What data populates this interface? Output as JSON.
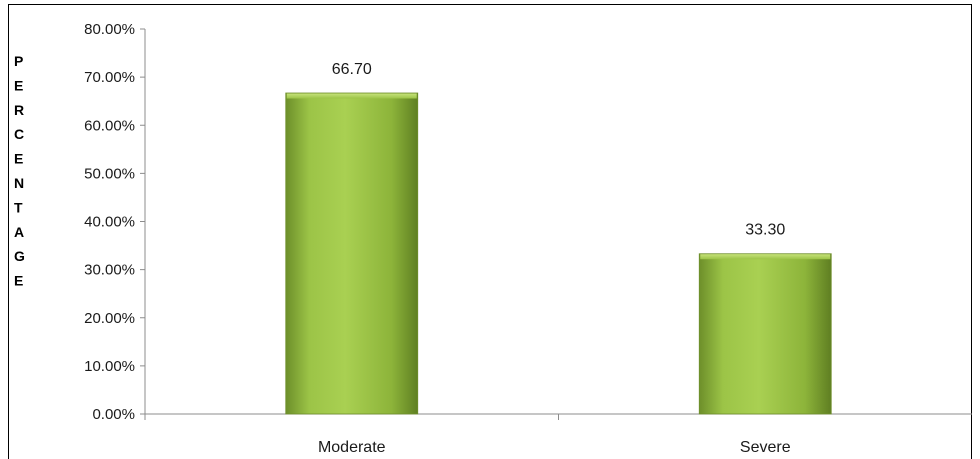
{
  "chart_data": {
    "type": "bar",
    "categories": [
      "Moderate",
      "Severe"
    ],
    "values": [
      66.7,
      33.3
    ],
    "data_labels": [
      "66.70",
      "33.30"
    ],
    "ylabel": "PERCENTAGE",
    "ylim": [
      0,
      80
    ],
    "yticks": [
      "0.00%",
      "10.00%",
      "20.00%",
      "30.00%",
      "40.00%",
      "50.00%",
      "60.00%",
      "70.00%",
      "80.00%"
    ],
    "grid": false,
    "legend": "none",
    "bar_color": "#8cb43a"
  }
}
